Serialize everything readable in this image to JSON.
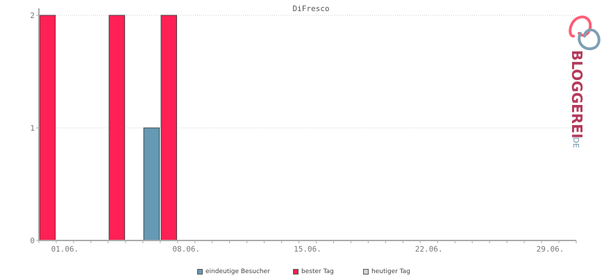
{
  "chart_data": {
    "type": "bar",
    "title": "DiFresco",
    "ylim": [
      0,
      2
    ],
    "yticks": [
      0,
      1,
      2
    ],
    "x_range": [
      "2016-05-31",
      "2016-07-01"
    ],
    "xticks": [
      "01.06.",
      "08.06.",
      "15.06.",
      "22.06.",
      "29.06."
    ],
    "grid": true,
    "legend_position": "bottom",
    "series": [
      {
        "name": "eindeutige Besucher",
        "color": "#6699b3",
        "points": [
          {
            "x": "06.06.",
            "value": 1
          }
        ]
      },
      {
        "name": "bester Tag",
        "color": "#ff2055",
        "points": [
          {
            "x": "31.05.",
            "value": 2
          },
          {
            "x": "04.06.",
            "value": 2
          },
          {
            "x": "07.06.",
            "value": 2
          }
        ]
      },
      {
        "name": "heutiger Tag",
        "color": "#d3d3d3",
        "points": []
      }
    ]
  },
  "logo": {
    "text_main": "BLOGGEREI",
    "text_suffix": ".DE",
    "colors": {
      "main": "#b43a5c",
      "suffix": "#6b8fa8"
    }
  }
}
